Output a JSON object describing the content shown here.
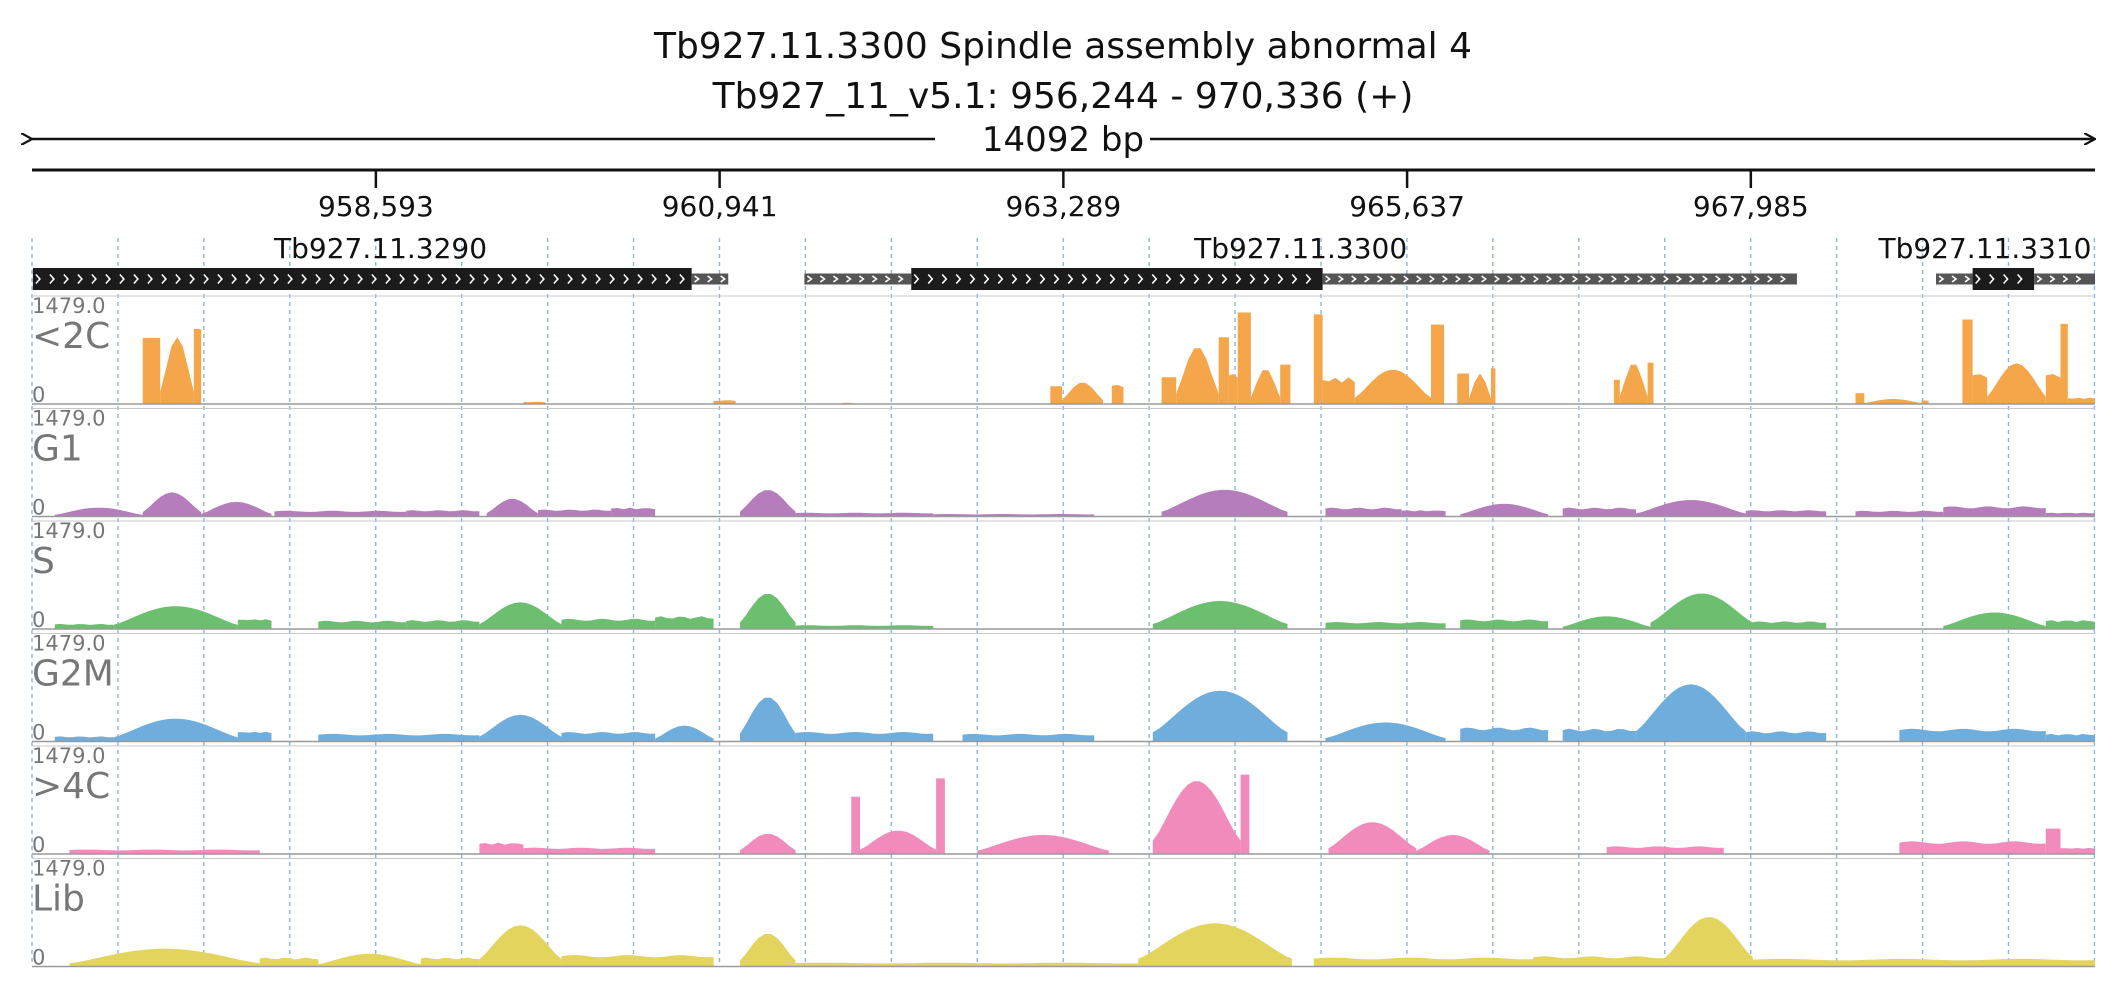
{
  "header": {
    "title": "Tb927.11.3300  Spindle assembly abnormal 4",
    "subtitle": "Tb927_11_v5.1: 956,244 - 970,336 (+)",
    "span_label": "14092 bp"
  },
  "chart_data": {
    "type": "area",
    "region": {
      "chrom": "Tb927_11_v5.1",
      "start": 956244,
      "end": 970336,
      "strand": "+",
      "length_bp": 14092
    },
    "ruler_ticks": [
      {
        "pos": 958593,
        "label": "958,593"
      },
      {
        "pos": 960941,
        "label": "960,941"
      },
      {
        "pos": 963289,
        "label": "963,289"
      },
      {
        "pos": 965637,
        "label": "965,637"
      },
      {
        "pos": 967985,
        "label": "967,985"
      }
    ],
    "genes": [
      {
        "name": "Tb927.11.3290",
        "start": 956250,
        "end": 961000,
        "segments": [
          {
            "start": 956250,
            "end": 960750,
            "kind": "cds"
          },
          {
            "start": 960750,
            "end": 961000,
            "kind": "utr"
          }
        ]
      },
      {
        "name": "Tb927.11.3300",
        "start": 961520,
        "end": 968300,
        "segments": [
          {
            "start": 961520,
            "end": 962250,
            "kind": "utr"
          },
          {
            "start": 962250,
            "end": 965060,
            "kind": "cds"
          },
          {
            "start": 965060,
            "end": 968300,
            "kind": "utr"
          }
        ]
      },
      {
        "name": "Tb927.11.3310",
        "start": 969250,
        "end": 970336,
        "segments": [
          {
            "start": 969250,
            "end": 969500,
            "kind": "utr"
          },
          {
            "start": 969500,
            "end": 969920,
            "kind": "cds"
          },
          {
            "start": 969920,
            "end": 970336,
            "kind": "utr"
          }
        ]
      }
    ],
    "y_max_label": "1479.0",
    "y_min_label": "0",
    "y_range": [
      0,
      1479
    ],
    "tracks": [
      {
        "name": "<2C",
        "color": "#f5a54a",
        "blocks": [
          {
            "start": 957000,
            "end": 957120,
            "peak": 1040,
            "shape": "edge"
          },
          {
            "start": 957120,
            "end": 957350,
            "peak": 1050,
            "shape": "hump"
          },
          {
            "start": 957350,
            "end": 957400,
            "peak": 1180,
            "shape": "edge"
          },
          {
            "start": 959600,
            "end": 959750,
            "peak": 35,
            "shape": "flat"
          },
          {
            "start": 960900,
            "end": 961050,
            "peak": 60,
            "shape": "flat"
          },
          {
            "start": 961780,
            "end": 961850,
            "peak": 20,
            "shape": "flat"
          },
          {
            "start": 963200,
            "end": 963280,
            "peak": 280,
            "shape": "edge"
          },
          {
            "start": 963280,
            "end": 963560,
            "peak": 340,
            "shape": "hump"
          },
          {
            "start": 963620,
            "end": 963700,
            "peak": 320,
            "shape": "flat"
          },
          {
            "start": 963960,
            "end": 964060,
            "peak": 420,
            "shape": "edge"
          },
          {
            "start": 964060,
            "end": 964350,
            "peak": 900,
            "shape": "hump"
          },
          {
            "start": 964350,
            "end": 964420,
            "peak": 1050,
            "shape": "edge"
          },
          {
            "start": 964420,
            "end": 964480,
            "peak": 500,
            "shape": "flat"
          },
          {
            "start": 964480,
            "end": 964570,
            "peak": 1440,
            "shape": "edge"
          },
          {
            "start": 964570,
            "end": 964770,
            "peak": 560,
            "shape": "hump"
          },
          {
            "start": 964770,
            "end": 964840,
            "peak": 620,
            "shape": "edge"
          },
          {
            "start": 965000,
            "end": 965060,
            "peak": 1410,
            "shape": "edge"
          },
          {
            "start": 965060,
            "end": 965280,
            "peak": 420,
            "shape": "flat"
          },
          {
            "start": 965280,
            "end": 965800,
            "peak": 540,
            "shape": "hump"
          },
          {
            "start": 965800,
            "end": 965890,
            "peak": 1250,
            "shape": "edge"
          },
          {
            "start": 965980,
            "end": 966060,
            "peak": 480,
            "shape": "edge"
          },
          {
            "start": 966060,
            "end": 966210,
            "peak": 480,
            "shape": "hump"
          },
          {
            "start": 966210,
            "end": 966240,
            "peak": 560,
            "shape": "edge"
          },
          {
            "start": 967050,
            "end": 967090,
            "peak": 380,
            "shape": "edge"
          },
          {
            "start": 967090,
            "end": 967280,
            "peak": 650,
            "shape": "hump"
          },
          {
            "start": 967280,
            "end": 967320,
            "peak": 650,
            "shape": "edge"
          },
          {
            "start": 968700,
            "end": 968760,
            "peak": 170,
            "shape": "edge"
          },
          {
            "start": 968760,
            "end": 969150,
            "peak": 80,
            "shape": "hump"
          },
          {
            "start": 969150,
            "end": 969200,
            "peak": 60,
            "shape": "flat"
          },
          {
            "start": 969430,
            "end": 969500,
            "peak": 1330,
            "shape": "edge"
          },
          {
            "start": 969500,
            "end": 969600,
            "peak": 500,
            "shape": "flat"
          },
          {
            "start": 969600,
            "end": 970000,
            "peak": 640,
            "shape": "hump"
          },
          {
            "start": 970000,
            "end": 970100,
            "peak": 500,
            "shape": "flat"
          },
          {
            "start": 970100,
            "end": 970150,
            "peak": 1260,
            "shape": "edge"
          },
          {
            "start": 970150,
            "end": 970336,
            "peak": 100,
            "shape": "flat"
          }
        ]
      },
      {
        "name": "G1",
        "color": "#b57dbb",
        "blocks": [
          {
            "start": 956400,
            "end": 957000,
            "peak": 140,
            "shape": "hump"
          },
          {
            "start": 957000,
            "end": 957400,
            "peak": 380,
            "shape": "hump"
          },
          {
            "start": 957400,
            "end": 957880,
            "peak": 230,
            "shape": "hump"
          },
          {
            "start": 957900,
            "end": 958800,
            "peak": 90,
            "shape": "flat"
          },
          {
            "start": 958800,
            "end": 959300,
            "peak": 100,
            "shape": "flat"
          },
          {
            "start": 959350,
            "end": 959700,
            "peak": 280,
            "shape": "hump"
          },
          {
            "start": 959700,
            "end": 960200,
            "peak": 110,
            "shape": "flat"
          },
          {
            "start": 960200,
            "end": 960500,
            "peak": 140,
            "shape": "flat"
          },
          {
            "start": 961080,
            "end": 961460,
            "peak": 420,
            "shape": "hump"
          },
          {
            "start": 961460,
            "end": 962400,
            "peak": 60,
            "shape": "flat"
          },
          {
            "start": 962400,
            "end": 963500,
            "peak": 40,
            "shape": "flat"
          },
          {
            "start": 963960,
            "end": 964820,
            "peak": 420,
            "shape": "hump"
          },
          {
            "start": 965080,
            "end": 965600,
            "peak": 140,
            "shape": "flat"
          },
          {
            "start": 965600,
            "end": 965900,
            "peak": 100,
            "shape": "flat"
          },
          {
            "start": 966000,
            "end": 966600,
            "peak": 200,
            "shape": "hump"
          },
          {
            "start": 966700,
            "end": 967200,
            "peak": 140,
            "shape": "flat"
          },
          {
            "start": 967200,
            "end": 967950,
            "peak": 260,
            "shape": "hump"
          },
          {
            "start": 967950,
            "end": 968500,
            "peak": 100,
            "shape": "flat"
          },
          {
            "start": 968700,
            "end": 969300,
            "peak": 90,
            "shape": "flat"
          },
          {
            "start": 969300,
            "end": 970000,
            "peak": 160,
            "shape": "flat"
          },
          {
            "start": 970000,
            "end": 970336,
            "peak": 60,
            "shape": "flat"
          }
        ]
      },
      {
        "name": "S",
        "color": "#6bbf6f",
        "blocks": [
          {
            "start": 956400,
            "end": 956800,
            "peak": 80,
            "shape": "flat"
          },
          {
            "start": 956800,
            "end": 957650,
            "peak": 360,
            "shape": "hump"
          },
          {
            "start": 957650,
            "end": 957880,
            "peak": 160,
            "shape": "flat"
          },
          {
            "start": 958200,
            "end": 958800,
            "peak": 130,
            "shape": "flat"
          },
          {
            "start": 958800,
            "end": 959300,
            "peak": 140,
            "shape": "flat"
          },
          {
            "start": 959300,
            "end": 959860,
            "peak": 420,
            "shape": "hump"
          },
          {
            "start": 959860,
            "end": 960500,
            "peak": 160,
            "shape": "flat"
          },
          {
            "start": 960500,
            "end": 960900,
            "peak": 200,
            "shape": "flat"
          },
          {
            "start": 961080,
            "end": 961460,
            "peak": 560,
            "shape": "hump"
          },
          {
            "start": 961460,
            "end": 962400,
            "peak": 60,
            "shape": "flat"
          },
          {
            "start": 963900,
            "end": 964820,
            "peak": 440,
            "shape": "hump"
          },
          {
            "start": 965080,
            "end": 965900,
            "peak": 110,
            "shape": "flat"
          },
          {
            "start": 966000,
            "end": 966600,
            "peak": 150,
            "shape": "flat"
          },
          {
            "start": 966700,
            "end": 967300,
            "peak": 200,
            "shape": "hump"
          },
          {
            "start": 967300,
            "end": 968000,
            "peak": 560,
            "shape": "hump"
          },
          {
            "start": 968000,
            "end": 968500,
            "peak": 120,
            "shape": "flat"
          },
          {
            "start": 969300,
            "end": 970000,
            "peak": 260,
            "shape": "hump"
          },
          {
            "start": 970000,
            "end": 970336,
            "peak": 140,
            "shape": "flat"
          }
        ]
      },
      {
        "name": "G2M",
        "color": "#6faddc",
        "blocks": [
          {
            "start": 956400,
            "end": 956800,
            "peak": 80,
            "shape": "flat"
          },
          {
            "start": 956800,
            "end": 957650,
            "peak": 360,
            "shape": "hump"
          },
          {
            "start": 957650,
            "end": 957880,
            "peak": 160,
            "shape": "flat"
          },
          {
            "start": 958200,
            "end": 959300,
            "peak": 120,
            "shape": "flat"
          },
          {
            "start": 959300,
            "end": 959860,
            "peak": 420,
            "shape": "hump"
          },
          {
            "start": 959860,
            "end": 960500,
            "peak": 150,
            "shape": "flat"
          },
          {
            "start": 960500,
            "end": 960900,
            "peak": 250,
            "shape": "hump"
          },
          {
            "start": 961080,
            "end": 961460,
            "peak": 700,
            "shape": "hump"
          },
          {
            "start": 961460,
            "end": 962400,
            "peak": 150,
            "shape": "flat"
          },
          {
            "start": 962600,
            "end": 963500,
            "peak": 120,
            "shape": "flat"
          },
          {
            "start": 963900,
            "end": 964820,
            "peak": 800,
            "shape": "hump"
          },
          {
            "start": 965080,
            "end": 965900,
            "peak": 300,
            "shape": "hump"
          },
          {
            "start": 966000,
            "end": 966600,
            "peak": 220,
            "shape": "flat"
          },
          {
            "start": 966700,
            "end": 967200,
            "peak": 200,
            "shape": "flat"
          },
          {
            "start": 967200,
            "end": 967950,
            "peak": 900,
            "shape": "hump"
          },
          {
            "start": 967950,
            "end": 968500,
            "peak": 160,
            "shape": "flat"
          },
          {
            "start": 969000,
            "end": 970000,
            "peak": 200,
            "shape": "flat"
          },
          {
            "start": 970000,
            "end": 970336,
            "peak": 120,
            "shape": "flat"
          }
        ]
      },
      {
        "name": ">4C",
        "color": "#f18bbb",
        "blocks": [
          {
            "start": 956500,
            "end": 957800,
            "peak": 70,
            "shape": "flat"
          },
          {
            "start": 959300,
            "end": 959600,
            "peak": 180,
            "shape": "flat"
          },
          {
            "start": 959600,
            "end": 960500,
            "peak": 100,
            "shape": "flat"
          },
          {
            "start": 961080,
            "end": 961460,
            "peak": 320,
            "shape": "hump"
          },
          {
            "start": 961840,
            "end": 961900,
            "peak": 900,
            "shape": "edge"
          },
          {
            "start": 961900,
            "end": 962420,
            "peak": 370,
            "shape": "hump"
          },
          {
            "start": 962420,
            "end": 962480,
            "peak": 1190,
            "shape": "edge"
          },
          {
            "start": 962700,
            "end": 963600,
            "peak": 300,
            "shape": "hump"
          },
          {
            "start": 963900,
            "end": 964500,
            "peak": 1150,
            "shape": "hump"
          },
          {
            "start": 964500,
            "end": 964560,
            "peak": 1250,
            "shape": "edge"
          },
          {
            "start": 965100,
            "end": 965700,
            "peak": 500,
            "shape": "hump"
          },
          {
            "start": 965700,
            "end": 966200,
            "peak": 300,
            "shape": "hump"
          },
          {
            "start": 967000,
            "end": 967800,
            "peak": 120,
            "shape": "flat"
          },
          {
            "start": 969000,
            "end": 970000,
            "peak": 200,
            "shape": "flat"
          },
          {
            "start": 970000,
            "end": 970100,
            "peak": 400,
            "shape": "edge"
          },
          {
            "start": 970100,
            "end": 970336,
            "peak": 100,
            "shape": "flat"
          }
        ]
      },
      {
        "name": "Lib",
        "color": "#e2d45c",
        "blocks": [
          {
            "start": 956500,
            "end": 957800,
            "peak": 280,
            "shape": "hump"
          },
          {
            "start": 957800,
            "end": 958200,
            "peak": 140,
            "shape": "flat"
          },
          {
            "start": 958200,
            "end": 958900,
            "peak": 200,
            "shape": "hump"
          },
          {
            "start": 958900,
            "end": 959300,
            "peak": 140,
            "shape": "flat"
          },
          {
            "start": 959300,
            "end": 959860,
            "peak": 650,
            "shape": "hump"
          },
          {
            "start": 959860,
            "end": 960900,
            "peak": 180,
            "shape": "flat"
          },
          {
            "start": 961080,
            "end": 961460,
            "peak": 520,
            "shape": "hump"
          },
          {
            "start": 961460,
            "end": 963800,
            "peak": 60,
            "shape": "flat"
          },
          {
            "start": 963800,
            "end": 964850,
            "peak": 680,
            "shape": "hump"
          },
          {
            "start": 965000,
            "end": 966500,
            "peak": 140,
            "shape": "flat"
          },
          {
            "start": 966500,
            "end": 967400,
            "peak": 160,
            "shape": "flat"
          },
          {
            "start": 967400,
            "end": 968000,
            "peak": 780,
            "shape": "hump"
          },
          {
            "start": 968000,
            "end": 970336,
            "peak": 120,
            "shape": "flat"
          }
        ]
      }
    ]
  }
}
